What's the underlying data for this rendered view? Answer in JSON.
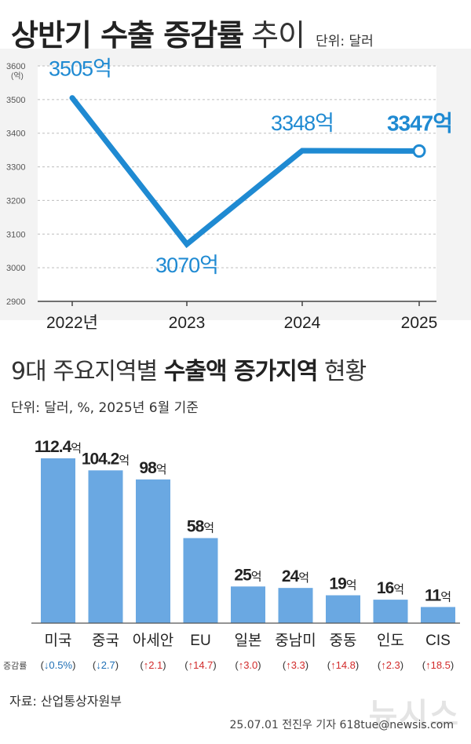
{
  "header": {
    "title_bold": "상반기 수출 증감률",
    "title_light": "추이",
    "unit": "단위: 달러"
  },
  "section2": {
    "title_normal": "9대 주요지역별",
    "title_bold": "수출액 증가지역",
    "title_tail": "현황",
    "unit": "단위: 달러, %, 2025년 6월 기준"
  },
  "footer": {
    "source": "자료: 산업통상자원부",
    "credit": "25.07.01 전진우 기자 618tue@newsis.com",
    "watermark": "뉴시스"
  },
  "colors": {
    "line": "#1f8ad2",
    "label_blue": "#1f8ad2",
    "bar": "#6aa8e2",
    "bar_label": "#222222",
    "up": "#d22b2b",
    "down": "#1f6fb5",
    "grid": "#bdbdbd"
  },
  "chart_data": [
    {
      "type": "line",
      "title": "상반기 수출 증감률 추이",
      "x": [
        "2022년",
        "2023",
        "2024",
        "2025"
      ],
      "series": [
        {
          "values": [
            3505,
            3070,
            3348,
            3347
          ]
        }
      ],
      "data_labels": [
        "3505억",
        "3070억",
        "3348억",
        "3347억"
      ],
      "ylabel_unit": "(억)",
      "ylim": [
        2900,
        3600
      ],
      "yticks": [
        2900,
        3000,
        3100,
        3200,
        3300,
        3400,
        3500,
        3600
      ],
      "grid": true
    },
    {
      "type": "bar",
      "title": "9대 주요지역별 수출액 증가지역 현황",
      "categories": [
        "미국",
        "중국",
        "아세안",
        "EU",
        "일본",
        "중남미",
        "중동",
        "인도",
        "CIS"
      ],
      "values": [
        112.4,
        104.2,
        98,
        58,
        25,
        24,
        19,
        16,
        11
      ],
      "value_labels": [
        "112.4",
        "104.2",
        "98",
        "58",
        "25",
        "24",
        "19",
        "16",
        "11"
      ],
      "value_unit": "억",
      "change_label": "증감률",
      "changes": [
        {
          "dir": "down",
          "value": "0.5%"
        },
        {
          "dir": "down",
          "value": "2.7"
        },
        {
          "dir": "up",
          "value": "2.1"
        },
        {
          "dir": "up",
          "value": "14.7"
        },
        {
          "dir": "up",
          "value": "3.0"
        },
        {
          "dir": "up",
          "value": "3.3"
        },
        {
          "dir": "up",
          "value": "14.8"
        },
        {
          "dir": "up",
          "value": "2.3"
        },
        {
          "dir": "up",
          "value": "18.5"
        }
      ],
      "ylim": [
        0,
        112.4
      ]
    }
  ]
}
